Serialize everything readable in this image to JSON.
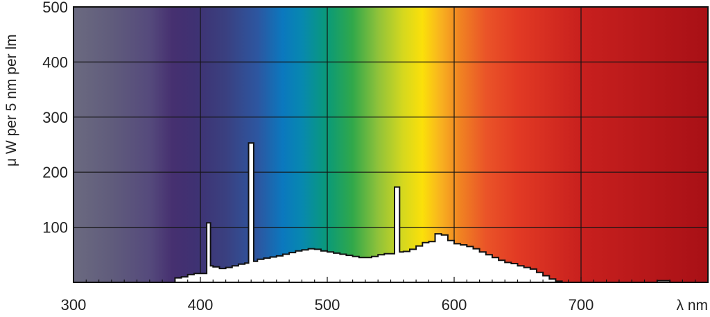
{
  "chart_data": {
    "type": "area",
    "title": "",
    "xlabel": "λ nm",
    "ylabel": "μ W per 5 nm per lm",
    "xlim": [
      300,
      800
    ],
    "ylim": [
      0,
      500
    ],
    "x_ticks": [
      300,
      400,
      500,
      600,
      700
    ],
    "x_tick_labels": [
      "300",
      "400",
      "500",
      "600",
      "700"
    ],
    "y_ticks": [
      100,
      200,
      300,
      400,
      500
    ],
    "y_tick_labels": [
      "100",
      "200",
      "300",
      "400",
      "500"
    ],
    "grid": true,
    "legend": "none",
    "background": "visible-spectrum gradient",
    "fill_color": "#ffffff",
    "outline_color": "#111111",
    "spectrum_colors": [
      {
        "x": 300,
        "color": "#6b6a80"
      },
      {
        "x": 330,
        "color": "#605c7c"
      },
      {
        "x": 360,
        "color": "#554a7c"
      },
      {
        "x": 378,
        "color": "#463070"
      },
      {
        "x": 395,
        "color": "#3f3172"
      },
      {
        "x": 420,
        "color": "#3a4080"
      },
      {
        "x": 445,
        "color": "#2d56a0"
      },
      {
        "x": 465,
        "color": "#0b78be"
      },
      {
        "x": 480,
        "color": "#0788b0"
      },
      {
        "x": 500,
        "color": "#0a9a78"
      },
      {
        "x": 520,
        "color": "#31a84a"
      },
      {
        "x": 540,
        "color": "#8fc23a"
      },
      {
        "x": 560,
        "color": "#d6d81e"
      },
      {
        "x": 575,
        "color": "#fbe00a"
      },
      {
        "x": 590,
        "color": "#f8b020"
      },
      {
        "x": 605,
        "color": "#f08222"
      },
      {
        "x": 625,
        "color": "#ea5428"
      },
      {
        "x": 650,
        "color": "#e23a24"
      },
      {
        "x": 700,
        "color": "#c8201e"
      },
      {
        "x": 800,
        "color": "#a81016"
      }
    ],
    "steps": [
      [
        380,
        8
      ],
      [
        385,
        10
      ],
      [
        390,
        14
      ],
      [
        395,
        16
      ],
      [
        400,
        16
      ],
      [
        405,
        108
      ],
      [
        408,
        30
      ],
      [
        410,
        28
      ],
      [
        415,
        25
      ],
      [
        420,
        27
      ],
      [
        425,
        30
      ],
      [
        430,
        33
      ],
      [
        435,
        35
      ],
      [
        438,
        253
      ],
      [
        442,
        38
      ],
      [
        445,
        42
      ],
      [
        450,
        44
      ],
      [
        455,
        46
      ],
      [
        460,
        48
      ],
      [
        465,
        51
      ],
      [
        470,
        54
      ],
      [
        475,
        57
      ],
      [
        480,
        59
      ],
      [
        485,
        61
      ],
      [
        490,
        60
      ],
      [
        495,
        57
      ],
      [
        500,
        55
      ],
      [
        505,
        53
      ],
      [
        510,
        51
      ],
      [
        515,
        49
      ],
      [
        520,
        47
      ],
      [
        525,
        45
      ],
      [
        530,
        45
      ],
      [
        535,
        47
      ],
      [
        540,
        50
      ],
      [
        545,
        52
      ],
      [
        550,
        52
      ],
      [
        553,
        173
      ],
      [
        557,
        55
      ],
      [
        560,
        56
      ],
      [
        565,
        60
      ],
      [
        570,
        66
      ],
      [
        575,
        72
      ],
      [
        580,
        74
      ],
      [
        585,
        88
      ],
      [
        590,
        86
      ],
      [
        595,
        76
      ],
      [
        600,
        70
      ],
      [
        605,
        68
      ],
      [
        610,
        65
      ],
      [
        615,
        61
      ],
      [
        620,
        55
      ],
      [
        625,
        50
      ],
      [
        630,
        45
      ],
      [
        635,
        40
      ],
      [
        640,
        36
      ],
      [
        645,
        34
      ],
      [
        650,
        30
      ],
      [
        655,
        27
      ],
      [
        660,
        24
      ],
      [
        665,
        18
      ],
      [
        670,
        12
      ],
      [
        675,
        6
      ],
      [
        680,
        2
      ],
      [
        685,
        0
      ],
      [
        755,
        0
      ],
      [
        760,
        3
      ],
      [
        765,
        3
      ],
      [
        770,
        0
      ],
      [
        800,
        0
      ]
    ]
  }
}
